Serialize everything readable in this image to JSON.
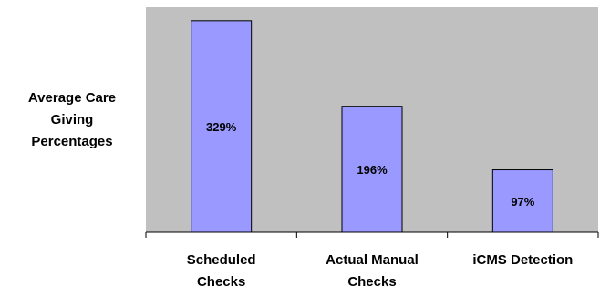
{
  "chart_data": {
    "type": "bar",
    "title": "",
    "xlabel": "",
    "ylabel": "Average Care\nGiving\nPercentages",
    "categories": [
      "Scheduled\nChecks",
      "Actual Manual\nChecks",
      "iCMS Detection"
    ],
    "values": [
      329,
      196,
      97
    ],
    "data_labels": [
      "329%",
      "196%",
      "97%"
    ],
    "ylim": [
      0,
      350
    ],
    "grid": false,
    "legend": "none"
  },
  "colors": {
    "plot_area": "#c0c0c0",
    "bar_fill": "#9999ff",
    "bar_stroke": "#000000",
    "axis": "#000000"
  }
}
